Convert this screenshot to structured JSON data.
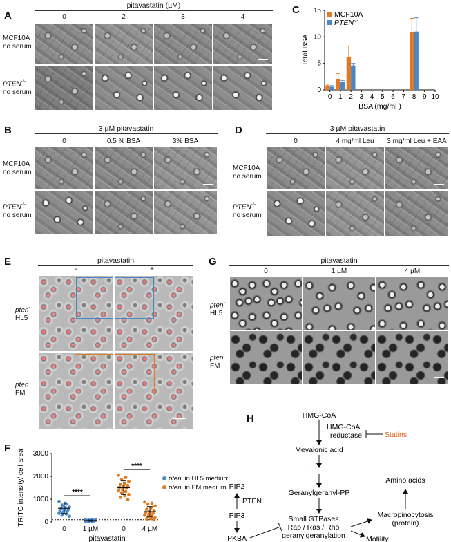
{
  "panelA": {
    "label": "A",
    "title": "pitavastatin (µM)",
    "cols": [
      "0",
      "2",
      "3",
      "4"
    ],
    "row1": [
      "MCF10A",
      "no serum"
    ],
    "row2_gene": "PTEN",
    "row2_sup": "-/-",
    "row2_sub": "no serum"
  },
  "panelB": {
    "label": "B",
    "title": "3 µM pitavastatin",
    "cols": [
      "0",
      "0.5 % BSA",
      "3% BSA"
    ],
    "row1": [
      "MCF10A",
      "no serum"
    ],
    "row2_gene": "PTEN",
    "row2_sup": "-/-",
    "row2_sub": "no serum"
  },
  "panelC": {
    "label": "C"
  },
  "panelD": {
    "label": "D",
    "title": "3 µM pitavastatin",
    "cols": [
      "0",
      "4 mg/ml Leu",
      "3 mg/ml Leu + EAA"
    ],
    "row1": [
      "MCF10A",
      "no serum"
    ],
    "row2_gene": "PTEN",
    "row2_sup": "-/-",
    "row2_sub": "no serum"
  },
  "panelE": {
    "label": "E",
    "title": "pitavastatin",
    "cols": [
      "-",
      "+"
    ],
    "row1_gene": "pten",
    "row1_sup": "-",
    "row1_sub": "HL5",
    "row2_gene": "pten",
    "row2_sup": "-",
    "row2_sub": "FM"
  },
  "panelF": {
    "label": "F"
  },
  "panelG": {
    "label": "G",
    "title": "pitavastatin",
    "cols": [
      "0",
      "1 µM",
      "4 µM"
    ],
    "row1_gene": "pten",
    "row1_sup": "-",
    "row1_sub": "HL5",
    "row2_gene": "pten",
    "row2_sup": "-",
    "row2_sub": "FM"
  },
  "panelH": {
    "label": "H",
    "nodes": {
      "hmgcoa": "HMG-CoA",
      "reductase1": "HMG-CoA",
      "reductase2": "reductase",
      "statins": "Statins",
      "mevalonic": "Mevalonic acid",
      "dots": "........",
      "ggpp": "Geranylgeranyl-PP",
      "pip2": "PIP2",
      "pten": "PTEN",
      "pip3": "PIP3",
      "pkba": "PKBA",
      "gtp1": "Small GTPases",
      "gtp2": "Rap / Ras / Rho",
      "gtp3": "geranylgeranylation",
      "motility": "Motility",
      "macro1": "Macropinocytosis",
      "macro2": "(protein)",
      "amino": "Amino acids"
    }
  },
  "colors": {
    "orange": "#e07b24",
    "blue": "#4a86c8",
    "statins": "#d9601a"
  },
  "chart_data": [
    {
      "type": "bar",
      "panel": "C",
      "xlabel": "BSA (mg/ml )",
      "ylabel": "Total BSA",
      "xlim": [
        -0.5,
        10
      ],
      "xticks": [
        0,
        1,
        2,
        3,
        4,
        5,
        6,
        7,
        8,
        9,
        10
      ],
      "ylim": [
        0,
        15
      ],
      "yticks": [
        0,
        5,
        10,
        15
      ],
      "legend_position": "top-left",
      "series": [
        {
          "name": "MCF10A",
          "color": "#e07b24",
          "x": [
            0,
            1,
            2,
            8
          ],
          "values": [
            0.7,
            2.1,
            6.2,
            10.9
          ],
          "errors": [
            0.2,
            1.0,
            2.1,
            2.6
          ]
        },
        {
          "name_gene": "PTEN",
          "name_sup": "-/-",
          "color": "#4a86c8",
          "x": [
            0,
            1,
            2,
            8
          ],
          "values": [
            0.6,
            1.5,
            4.6,
            11.0
          ],
          "errors": [
            0.2,
            0.3,
            0.4,
            2.6
          ]
        }
      ]
    },
    {
      "type": "scatter",
      "panel": "F",
      "ylabel": "TRITC intensity/ cell area",
      "xlabel": "pitavastatin",
      "categories": [
        "0",
        "1 µM",
        "0",
        "4 µM"
      ],
      "ylim": [
        0,
        3000
      ],
      "yticks": [
        0,
        1000,
        2000,
        3000
      ],
      "dashed_line_y": 100,
      "significance": [
        "****",
        "****"
      ],
      "legend_position": "right",
      "series": [
        {
          "name_gene": "pten",
          "name_sup": "-",
          "name_rest": " in HL5 medium",
          "color": "#4a86c8",
          "groups": [
            {
              "category_index": 0,
              "mean": 600,
              "sd": 220,
              "points": [
                900,
                780,
                720,
                650,
                620,
                580,
                560,
                520,
                480,
                460,
                420,
                380,
                350,
                300,
                250,
                820
              ]
            },
            {
              "category_index": 1,
              "mean": 60,
              "sd": 30,
              "points": [
                110,
                90,
                80,
                70,
                65,
                60,
                55,
                50,
                48,
                45,
                40,
                35,
                30,
                28,
                95,
                75
              ]
            }
          ]
        },
        {
          "name_gene": "pten",
          "name_sup": "-",
          "name_rest": " in FM medium",
          "color": "#e07b24",
          "groups": [
            {
              "category_index": 2,
              "mean": 1500,
              "sd": 300,
              "points": [
                2050,
                1950,
                1850,
                1780,
                1700,
                1650,
                1600,
                1560,
                1520,
                1480,
                1420,
                1380,
                1330,
                1280,
                1200,
                1150,
                1080,
                980
              ]
            },
            {
              "category_index": 3,
              "mean": 450,
              "sd": 230,
              "points": [
                880,
                820,
                780,
                700,
                620,
                560,
                500,
                460,
                420,
                380,
                330,
                300,
                260,
                220,
                180,
                150,
                120,
                90
              ]
            }
          ]
        }
      ]
    }
  ]
}
